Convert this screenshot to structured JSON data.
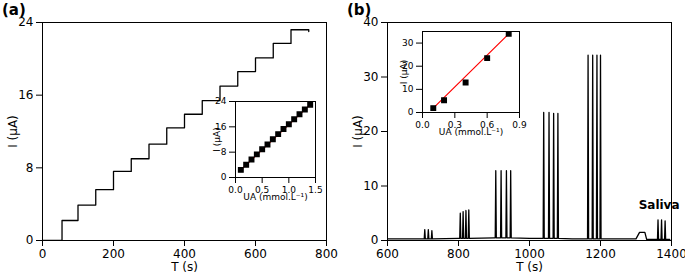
{
  "chart_data": [
    {
      "type": "line",
      "title": "(a)",
      "x_label": "T (s)",
      "y_label": "I (μA)",
      "xlim": [
        0,
        800
      ],
      "xticks": [
        0,
        200,
        400,
        600,
        800
      ],
      "ylim": [
        0,
        24
      ],
      "yticks": [
        0,
        8,
        16,
        24
      ],
      "series": [
        {
          "type": "line",
          "color": "#000000",
          "line_style": "step",
          "x": [
            0,
            55,
            100,
            150,
            200,
            250,
            300,
            350,
            400,
            450,
            500,
            550,
            600,
            650,
            700,
            750
          ],
          "values": [
            0,
            2.2,
            3.9,
            5.6,
            7.6,
            9.0,
            10.6,
            12.4,
            13.9,
            15.4,
            17.0,
            18.6,
            20.1,
            21.7,
            23.2,
            23.0
          ]
        }
      ]
    },
    {
      "type": "scatter",
      "x_label": "UA (mmol.L⁻¹)",
      "y_label": "I (μA)",
      "xlim": [
        0,
        1.5
      ],
      "xticks": [
        {
          "value": 0,
          "label": "0.0"
        },
        {
          "value": 0.5,
          "label": "0.5"
        },
        {
          "value": 1,
          "label": "1.0"
        },
        {
          "value": 1.5,
          "label": "1.5"
        }
      ],
      "ylim": [
        0,
        24
      ],
      "yticks": [
        0,
        8,
        16,
        24
      ],
      "series": [
        {
          "type": "line",
          "color": "#ff0000",
          "x": [
            0.1,
            1.4
          ],
          "values": [
            2.4,
            23.0
          ]
        },
        {
          "type": "scatter",
          "marker": "square",
          "color": "#000000",
          "x": [
            0.1,
            0.2,
            0.3,
            0.4,
            0.5,
            0.6,
            0.7,
            0.8,
            0.9,
            1.0,
            1.1,
            1.2,
            1.3,
            1.4
          ],
          "values": [
            2.4,
            4.0,
            5.7,
            7.3,
            8.9,
            10.4,
            12.1,
            13.7,
            15.3,
            16.8,
            18.4,
            20.0,
            21.5,
            23.0
          ]
        }
      ]
    },
    {
      "type": "line",
      "title": "(b)",
      "x_label": "T (s)",
      "y_label": "I (μA)",
      "xlim": [
        600,
        1400
      ],
      "xticks": [
        600,
        800,
        1000,
        1200,
        1400
      ],
      "ylim": [
        0,
        40
      ],
      "yticks": [
        0,
        10,
        20,
        30,
        40
      ],
      "annotations": [
        {
          "text": "Saliva",
          "x": 1365,
          "y": 6.5
        }
      ],
      "series": [
        {
          "type": "line",
          "color": "#000000",
          "x": [
            600,
            700,
            703.5,
            705,
            706.5,
            713.5,
            715,
            716.5,
            723.5,
            725,
            726.5,
            800,
            803.5,
            805,
            806.5,
            811.5,
            813,
            814.5,
            819.5,
            821,
            822.5,
            827.5,
            829,
            830.5,
            900,
            903.5,
            905,
            906.5,
            918.5,
            920,
            921.5,
            933.5,
            935,
            936.5,
            945.5,
            947,
            948.5,
            1000,
            1038.5,
            1040,
            1041.5,
            1053.5,
            1055,
            1056.5,
            1066.5,
            1068,
            1069.5,
            1078.5,
            1080,
            1081.5,
            1120,
            1163.5,
            1165,
            1166.5,
            1176.5,
            1178,
            1179.5,
            1188.5,
            1190,
            1191.5,
            1198.5,
            1200,
            1201.5,
            1300,
            1310,
            1325,
            1330,
            1350,
            1360.5,
            1362,
            1363.5,
            1370.5,
            1372,
            1373.5,
            1380.5,
            1382,
            1383.5,
            1395
          ],
          "values": [
            0.3,
            0.3,
            0.3,
            2.0,
            0.3,
            0.3,
            2.0,
            0.3,
            0.3,
            1.8,
            0.3,
            0.4,
            0.4,
            5.0,
            0.4,
            0.4,
            5.3,
            0.4,
            0.4,
            5.5,
            0.4,
            0.4,
            5.6,
            0.4,
            0.5,
            0.5,
            12.8,
            0.5,
            0.5,
            12.8,
            0.5,
            0.5,
            12.8,
            0.5,
            0.5,
            12.8,
            0.5,
            0.4,
            0.4,
            23.5,
            0.4,
            0.4,
            23.5,
            0.4,
            0.4,
            23.3,
            0.4,
            0.4,
            23.3,
            0.4,
            0.3,
            0.3,
            34.0,
            0.3,
            0.3,
            34.0,
            0.3,
            0.3,
            34.0,
            0.3,
            0.3,
            34.0,
            0.3,
            0.3,
            1.5,
            1.5,
            0.2,
            0.2,
            0.2,
            3.8,
            0.2,
            0.2,
            3.8,
            0.2,
            0.2,
            3.6,
            0.2,
            0.2
          ]
        }
      ]
    },
    {
      "type": "scatter",
      "x_label": "UA (mmol.L⁻¹)",
      "y_label": "I (μA)",
      "xlim": [
        0,
        0.9
      ],
      "xticks": [
        {
          "value": 0,
          "label": "0.0"
        },
        {
          "value": 0.3,
          "label": "0.3"
        },
        {
          "value": 0.6,
          "label": "0.6"
        },
        {
          "value": 0.9,
          "label": "0.9"
        }
      ],
      "ylim": [
        0,
        35
      ],
      "yticks": [
        0,
        10,
        20,
        30
      ],
      "series": [
        {
          "type": "line",
          "color": "#ff0000",
          "x": [
            0.1,
            0.8
          ],
          "values": [
            1.9,
            34.0
          ]
        },
        {
          "type": "scatter",
          "marker": "square",
          "color": "#000000",
          "x": [
            0.1,
            0.2,
            0.4,
            0.6,
            0.8
          ],
          "values": [
            1.9,
            5.3,
            13.0,
            23.5,
            34.0
          ]
        }
      ]
    }
  ]
}
